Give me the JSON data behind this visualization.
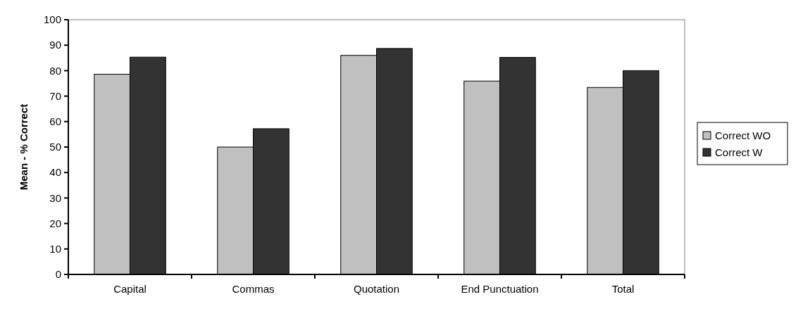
{
  "chart_data": {
    "type": "bar",
    "ylabel": "Mean - % Correct",
    "categories": [
      "Capital",
      "Commas",
      "Quotation",
      "End Punctuation",
      "Total"
    ],
    "series": [
      {
        "name": "Correct WO",
        "color": "#c0c0c0",
        "values": [
          78.6,
          50,
          86,
          75.9,
          73.4
        ]
      },
      {
        "name": "Correct W",
        "color": "#333333",
        "values": [
          85.3,
          57.2,
          88.7,
          85.2,
          80
        ]
      }
    ],
    "ylim": [
      0,
      100
    ],
    "yticks": [
      0,
      10,
      20,
      30,
      40,
      50,
      60,
      70,
      80,
      90,
      100
    ],
    "grid": false,
    "legend": "right"
  }
}
